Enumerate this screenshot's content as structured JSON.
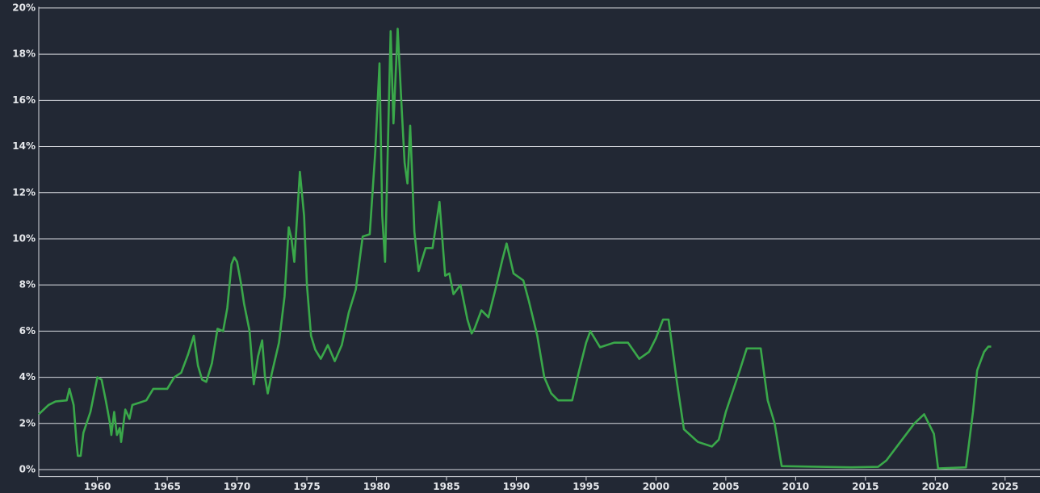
{
  "chart_data": {
    "type": "line",
    "x": [
      1955.8,
      1956.5,
      1957,
      1957.8,
      1958.0,
      1958.3,
      1958.5,
      1958.6,
      1958.8,
      1959.0,
      1959.5,
      1960.0,
      1960.3,
      1960.6,
      1960.9,
      1961.0,
      1961.2,
      1961.4,
      1961.6,
      1961.7,
      1962.0,
      1962.3,
      1962.5,
      1963.0,
      1963.5,
      1964,
      1965,
      1965.5,
      1966,
      1966.5,
      1966.9,
      1967.2,
      1967.5,
      1967.8,
      1968.2,
      1968.6,
      1969.0,
      1969.3,
      1969.6,
      1969.8,
      1970.0,
      1970.3,
      1970.5,
      1970.9,
      1971.2,
      1971.5,
      1971.8,
      1972.0,
      1972.2,
      1972.5,
      1973.0,
      1973.4,
      1973.7,
      1973.9,
      1974.1,
      1974.5,
      1974.8,
      1975.0,
      1975.3,
      1975.6,
      1976.0,
      1976.5,
      1977.0,
      1977.5,
      1978.0,
      1978.5,
      1979.0,
      1979.5,
      1979.9,
      1980.2,
      1980.4,
      1980.6,
      1981.0,
      1981.2,
      1981.5,
      1981.8,
      1982.0,
      1982.2,
      1982.4,
      1982.7,
      1983.0,
      1983.5,
      1984.0,
      1984.5,
      1984.9,
      1985.2,
      1985.5,
      1986.0,
      1986.5,
      1986.8,
      1987.0,
      1987.5,
      1988.0,
      1988.5,
      1989.0,
      1989.3,
      1989.8,
      1990.5,
      1990.9,
      1991.5,
      1992.0,
      1992.5,
      1993.0,
      1994.0,
      1994.5,
      1995.0,
      1995.3,
      1996.0,
      1997.0,
      1998.0,
      1998.8,
      1999.5,
      2000.0,
      2000.5,
      2000.9,
      2001.5,
      2002.0,
      2003.0,
      2004.0,
      2004.5,
      2005.0,
      2006.0,
      2006.5,
      2007.5,
      2008.0,
      2008.5,
      2009.0,
      2014.0,
      2015.9,
      2016.5,
      2017.5,
      2018.5,
      2019.2,
      2019.9,
      2020.2,
      2022.2,
      2022.7,
      2023.0,
      2023.5,
      2023.8,
      2024.0
    ],
    "series": [
      {
        "color": "#3aa84a",
        "values": [
          2.4,
          2.8,
          2.95,
          3.0,
          3.5,
          2.8,
          1.2,
          0.6,
          0.6,
          1.6,
          2.5,
          4.0,
          3.9,
          3.0,
          2.0,
          1.5,
          2.5,
          1.5,
          1.8,
          1.2,
          2.6,
          2.2,
          2.8,
          2.9,
          3.0,
          3.5,
          3.5,
          4.0,
          4.2,
          5.0,
          5.8,
          4.5,
          3.9,
          3.8,
          4.6,
          6.1,
          6.0,
          7.0,
          8.9,
          9.2,
          9.0,
          8.0,
          7.2,
          6.0,
          3.7,
          4.9,
          5.6,
          4.0,
          3.3,
          4.2,
          5.5,
          7.5,
          10.5,
          10.0,
          9.0,
          12.9,
          11.0,
          8.0,
          5.8,
          5.2,
          4.8,
          5.4,
          4.7,
          5.4,
          6.8,
          7.8,
          10.1,
          10.2,
          13.8,
          17.6,
          11.0,
          9.0,
          19.0,
          15.0,
          19.1,
          15.5,
          13.3,
          12.4,
          14.9,
          10.3,
          8.6,
          9.6,
          9.6,
          11.6,
          8.4,
          8.5,
          7.6,
          8.0,
          6.5,
          5.9,
          6.1,
          6.9,
          6.6,
          7.8,
          9.1,
          9.8,
          8.5,
          8.2,
          7.3,
          5.8,
          4.0,
          3.3,
          3.0,
          3.0,
          4.3,
          5.5,
          6.0,
          5.3,
          5.5,
          5.5,
          4.8,
          5.1,
          5.7,
          6.5,
          6.5,
          3.8,
          1.75,
          1.2,
          1.0,
          1.3,
          2.5,
          4.3,
          5.25,
          5.25,
          3.0,
          2.0,
          0.15,
          0.1,
          0.12,
          0.4,
          1.2,
          2.0,
          2.4,
          1.55,
          0.05,
          0.1,
          2.5,
          4.3,
          5.1,
          5.33,
          5.33
        ]
      }
    ],
    "xlim": [
      1955.8,
      2027.5
    ],
    "xticks": [
      1960,
      1965,
      1970,
      1975,
      1980,
      1985,
      1990,
      1995,
      2000,
      2005,
      2010,
      2015,
      2020,
      2025
    ],
    "ylim": [
      -0.3,
      20.05
    ],
    "yticks": [
      {
        "value": 0,
        "label": "0%"
      },
      {
        "value": 2,
        "label": "2%"
      },
      {
        "value": 4,
        "label": "4%"
      },
      {
        "value": 6,
        "label": "6%"
      },
      {
        "value": 8,
        "label": "8%"
      },
      {
        "value": 10,
        "label": "10%"
      },
      {
        "value": 12,
        "label": "12%"
      },
      {
        "value": 14,
        "label": "14%"
      },
      {
        "value": 16,
        "label": "16%"
      },
      {
        "value": 18,
        "label": "18%"
      },
      {
        "value": 20,
        "label": "20%"
      }
    ],
    "grid": true
  }
}
